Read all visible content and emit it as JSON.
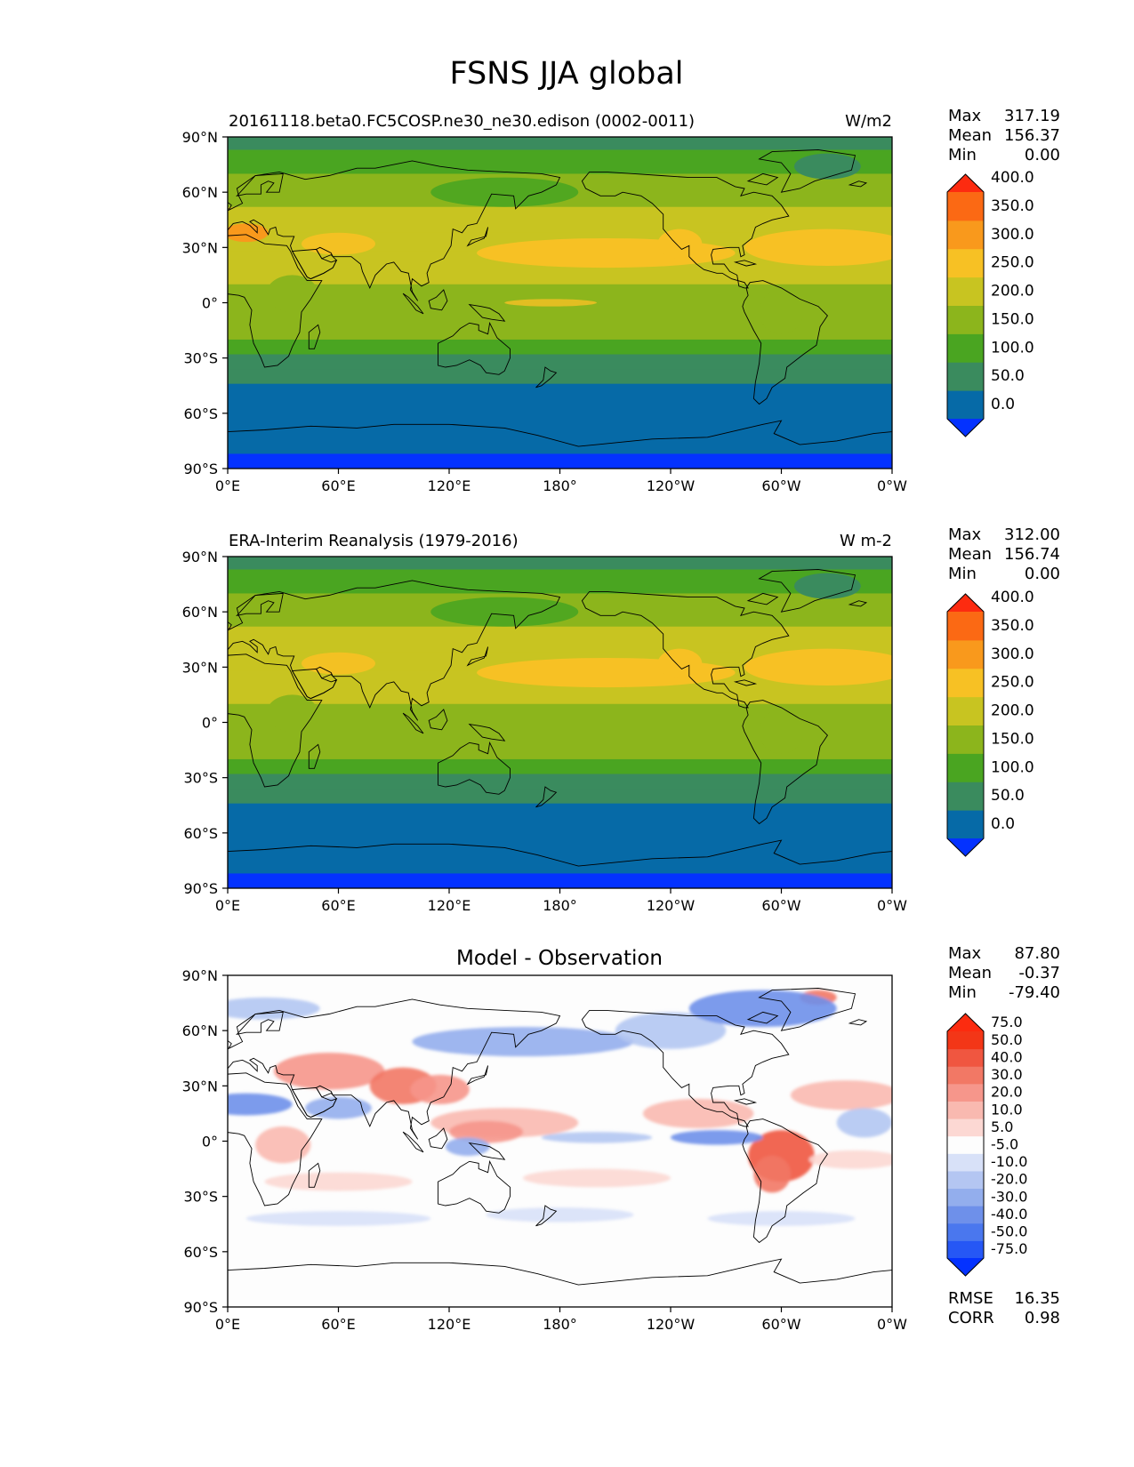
{
  "figure_title": "FSNS JJA global",
  "panels": [
    {
      "title_left": "20161118.beta0.FC5COSP.ne30_ne30.edison (0002-0011)",
      "units": "W/m2",
      "stats": {
        "max_label": "Max",
        "max": "317.19",
        "mean_label": "Mean",
        "mean": "156.37",
        "min_label": "Min",
        "min": "0.00"
      }
    },
    {
      "title_left": "ERA-Interim Reanalysis (1979-2016)",
      "units": "W m-2",
      "stats": {
        "max_label": "Max",
        "max": "312.00",
        "mean_label": "Mean",
        "mean": "156.74",
        "min_label": "Min",
        "min": "0.00"
      }
    },
    {
      "title_center": "Model - Observation",
      "stats": {
        "max_label": "Max",
        "max": "87.80",
        "mean_label": "Mean",
        "mean": "-0.37",
        "min_label": "Min",
        "min": "-79.40"
      },
      "extra": {
        "rmse_label": "RMSE",
        "rmse": "16.35",
        "corr_label": "CORR",
        "corr": "0.98"
      }
    }
  ],
  "chart_data": [
    {
      "type": "heatmap",
      "title": "20161118.beta0.FC5COSP.ne30_ne30.edison (0002-0011)",
      "units": "W/m2",
      "x_ticks": [
        "0°E",
        "60°E",
        "120°E",
        "180°",
        "120°W",
        "60°W",
        "0°W"
      ],
      "y_ticks": [
        "90°N",
        "60°N",
        "30°N",
        "0°",
        "30°S",
        "60°S",
        "90°S"
      ],
      "xlim": [
        0,
        360
      ],
      "ylim": [
        -90,
        90
      ],
      "colorbar_levels": [
        "0.0",
        "50.0",
        "100.0",
        "150.0",
        "200.0",
        "250.0",
        "300.0",
        "350.0",
        "400.0"
      ],
      "colorbar_colors": [
        "#0432ff",
        "#066aa7",
        "#3a8b5e",
        "#4aa521",
        "#8cb51c",
        "#c8c421",
        "#f7c124",
        "#f9991c",
        "#fb6914",
        "#fd2b10"
      ]
    },
    {
      "type": "heatmap",
      "title": "ERA-Interim Reanalysis (1979-2016)",
      "units": "W m-2",
      "x_ticks": [
        "0°E",
        "60°E",
        "120°E",
        "180°",
        "120°W",
        "60°W",
        "0°W"
      ],
      "y_ticks": [
        "90°N",
        "60°N",
        "30°N",
        "0°",
        "30°S",
        "60°S",
        "90°S"
      ],
      "xlim": [
        0,
        360
      ],
      "ylim": [
        -90,
        90
      ],
      "colorbar_levels": [
        "0.0",
        "50.0",
        "100.0",
        "150.0",
        "200.0",
        "250.0",
        "300.0",
        "350.0",
        "400.0"
      ],
      "colorbar_colors": [
        "#0432ff",
        "#066aa7",
        "#3a8b5e",
        "#4aa521",
        "#8cb51c",
        "#c8c421",
        "#f7c124",
        "#f9991c",
        "#fb6914",
        "#fd2b10"
      ]
    },
    {
      "type": "heatmap",
      "title": "Model - Observation",
      "x_ticks": [
        "0°E",
        "60°E",
        "120°E",
        "180°",
        "120°W",
        "60°W",
        "0°W"
      ],
      "y_ticks": [
        "90°N",
        "60°N",
        "30°N",
        "0°",
        "30°S",
        "60°S",
        "90°S"
      ],
      "xlim": [
        0,
        360
      ],
      "ylim": [
        -90,
        90
      ],
      "colorbar_levels": [
        "-75.0",
        "-50.0",
        "-40.0",
        "-30.0",
        "-20.0",
        "-10.0",
        "-5.0",
        "5.0",
        "10.0",
        "20.0",
        "30.0",
        "40.0",
        "50.0",
        "75.0"
      ],
      "colorbar_colors": [
        "#0432ff",
        "#2657f5",
        "#4a77ee",
        "#6e90ea",
        "#93aeed",
        "#b4c6f2",
        "#d8e1f8",
        "#fdfdfd",
        "#fcd8d3",
        "#f9b9b0",
        "#f6968b",
        "#f27865",
        "#f05640",
        "#f33617",
        "#fc2b0f"
      ]
    }
  ]
}
